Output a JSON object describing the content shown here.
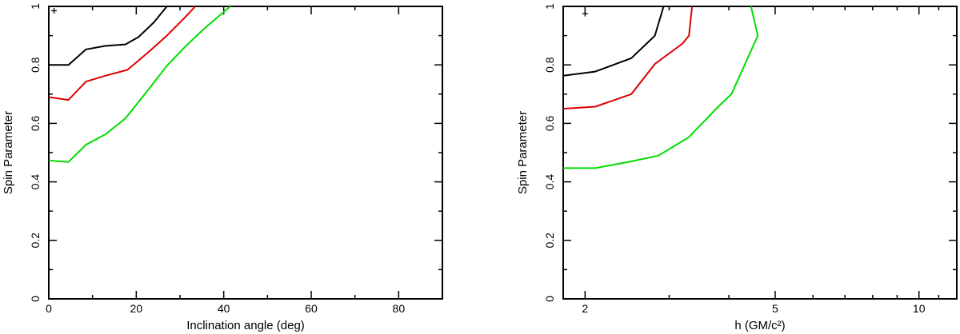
{
  "chart_data": [
    {
      "type": "line",
      "xlabel": "Inclination angle (deg)",
      "ylabel": "Spin Parameter",
      "xlim": [
        0,
        90
      ],
      "ylim": [
        0,
        1
      ],
      "xscale": "linear",
      "xticks": [
        0,
        20,
        40,
        60,
        80
      ],
      "xtick_labels": [
        "0",
        "20",
        "40",
        "60",
        "80"
      ],
      "yticks": [
        0,
        0.2,
        0.4,
        0.6,
        0.8,
        1
      ],
      "ytick_labels": [
        "0",
        "0.2",
        "0.4",
        "0.6",
        "0.8",
        "1"
      ],
      "grid": false,
      "best_fit_marker": {
        "x": 1.2,
        "y": 0.985
      },
      "series": [
        {
          "color": "#000000",
          "points": [
            [
              0,
              0.8
            ],
            [
              4.5,
              0.8
            ],
            [
              8.5,
              0.853
            ],
            [
              13,
              0.865
            ],
            [
              17.5,
              0.87
            ],
            [
              20.5,
              0.895
            ],
            [
              24,
              0.945
            ],
            [
              27,
              1.0
            ]
          ]
        },
        {
          "color": "#dd0000",
          "points": [
            [
              0,
              0.69
            ],
            [
              4.5,
              0.68
            ],
            [
              8.5,
              0.743
            ],
            [
              13,
              0.763
            ],
            [
              18,
              0.783
            ],
            [
              22.5,
              0.84
            ],
            [
              27,
              0.9
            ],
            [
              31,
              0.96
            ],
            [
              33.5,
              1.0
            ]
          ]
        },
        {
          "color": "#00dd00",
          "points": [
            [
              0,
              0.473
            ],
            [
              4.5,
              0.468
            ],
            [
              8.5,
              0.527
            ],
            [
              13,
              0.563
            ],
            [
              17.5,
              0.617
            ],
            [
              22.5,
              0.71
            ],
            [
              27,
              0.797
            ],
            [
              31.5,
              0.867
            ],
            [
              36,
              0.93
            ],
            [
              41.5,
              1.0
            ]
          ]
        }
      ]
    },
    {
      "type": "line",
      "xlabel": "h (GM/c²)",
      "ylabel": "Spin Parameter",
      "xlim": [
        1.8,
        12
      ],
      "ylim": [
        0,
        1
      ],
      "xscale": "log",
      "xticks": [
        2,
        5,
        10
      ],
      "xtick_labels": [
        "2",
        "5",
        "10"
      ],
      "yticks": [
        0,
        0.2,
        0.4,
        0.6,
        0.8,
        1
      ],
      "ytick_labels": [
        "0",
        "0.2",
        "0.4",
        "0.6",
        "0.8",
        "1"
      ],
      "grid": false,
      "best_fit_marker": {
        "x": 2.0,
        "y": 0.975
      },
      "series": [
        {
          "color": "#000000",
          "points": [
            [
              1.8,
              0.763
            ],
            [
              2.1,
              0.777
            ],
            [
              2.5,
              0.823
            ],
            [
              2.8,
              0.9
            ],
            [
              2.92,
              1.0
            ]
          ]
        },
        {
          "color": "#dd0000",
          "points": [
            [
              1.8,
              0.65
            ],
            [
              2.1,
              0.657
            ],
            [
              2.5,
              0.7
            ],
            [
              2.8,
              0.803
            ],
            [
              3.2,
              0.873
            ],
            [
              3.3,
              0.9
            ],
            [
              3.35,
              1.0
            ]
          ]
        },
        {
          "color": "#00dd00",
          "points": [
            [
              1.8,
              0.447
            ],
            [
              2.1,
              0.447
            ],
            [
              2.5,
              0.47
            ],
            [
              2.85,
              0.49
            ],
            [
              3.3,
              0.553
            ],
            [
              3.8,
              0.657
            ],
            [
              4.05,
              0.7
            ],
            [
              4.6,
              0.9
            ],
            [
              4.45,
              1.0
            ]
          ]
        }
      ]
    }
  ]
}
